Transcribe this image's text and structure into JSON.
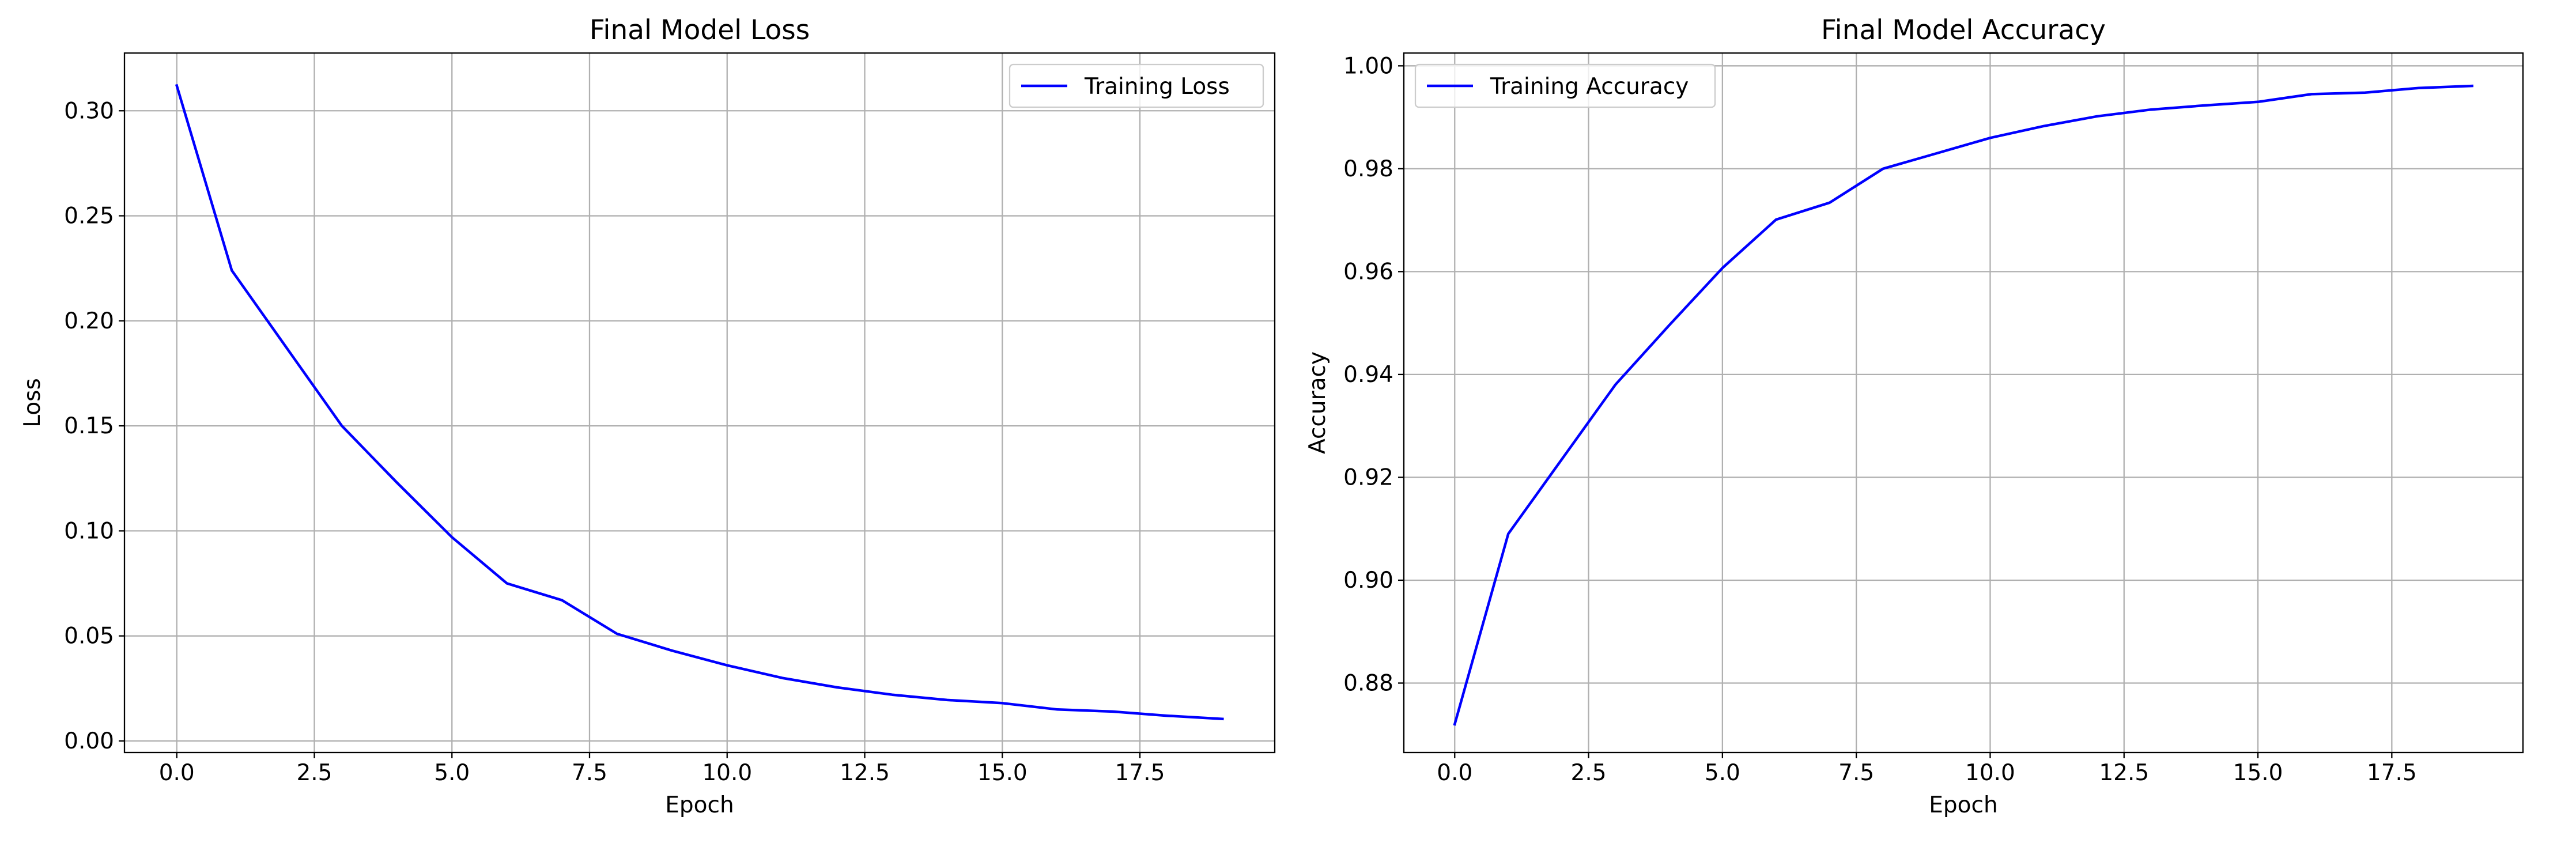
{
  "chart_data": [
    {
      "type": "line",
      "title": "Final Model Loss",
      "xlabel": "Epoch",
      "ylabel": "Loss",
      "xlim": [
        -0.95,
        19.95
      ],
      "ylim": [
        -0.0055,
        0.3275
      ],
      "xticks": [
        0,
        2.5,
        5,
        7.5,
        10,
        12.5,
        15,
        17.5
      ],
      "xtick_labels": [
        "0.0",
        "2.5",
        "5.0",
        "7.5",
        "10.0",
        "12.5",
        "15.0",
        "17.5"
      ],
      "yticks": [
        0,
        0.05,
        0.1,
        0.15,
        0.2,
        0.25,
        0.3
      ],
      "ytick_labels": [
        "0.00",
        "0.05",
        "0.10",
        "0.15",
        "0.20",
        "0.25",
        "0.30"
      ],
      "grid": true,
      "legend_position": "upper right",
      "series": [
        {
          "name": "Training Loss",
          "color": "#0000ff",
          "x": [
            0,
            1,
            2,
            3,
            4,
            5,
            6,
            7,
            8,
            9,
            10,
            11,
            12,
            13,
            14,
            15,
            16,
            17,
            18,
            19
          ],
          "values": [
            0.312,
            0.224,
            0.187,
            0.15,
            0.123,
            0.097,
            0.075,
            0.067,
            0.051,
            0.043,
            0.036,
            0.03,
            0.0255,
            0.022,
            0.0195,
            0.018,
            0.015,
            0.014,
            0.012,
            0.0105
          ]
        }
      ]
    },
    {
      "type": "line",
      "title": "Final Model Accuracy",
      "xlabel": "Epoch",
      "ylabel": "Accuracy",
      "xlim": [
        -0.95,
        19.95
      ],
      "ylim": [
        0.8665,
        1.0025
      ],
      "xticks": [
        0,
        2.5,
        5,
        7.5,
        10,
        12.5,
        15,
        17.5
      ],
      "xtick_labels": [
        "0.0",
        "2.5",
        "5.0",
        "7.5",
        "10.0",
        "12.5",
        "15.0",
        "17.5"
      ],
      "yticks": [
        0.88,
        0.9,
        0.92,
        0.94,
        0.96,
        0.98,
        1.0
      ],
      "ytick_labels": [
        "0.88",
        "0.90",
        "0.92",
        "0.94",
        "0.96",
        "0.98",
        "1.00"
      ],
      "grid": true,
      "legend_position": "upper left",
      "series": [
        {
          "name": "Training Accuracy",
          "color": "#0000ff",
          "x": [
            0,
            1,
            2,
            3,
            4,
            5,
            6,
            7,
            8,
            9,
            10,
            11,
            12,
            13,
            14,
            15,
            16,
            17,
            18,
            19
          ],
          "values": [
            0.872,
            0.909,
            0.9235,
            0.938,
            0.9495,
            0.9607,
            0.9701,
            0.9734,
            0.98,
            0.983,
            0.986,
            0.9883,
            0.9902,
            0.9915,
            0.9923,
            0.993,
            0.9945,
            0.9948,
            0.9957,
            0.9961
          ]
        }
      ]
    }
  ]
}
